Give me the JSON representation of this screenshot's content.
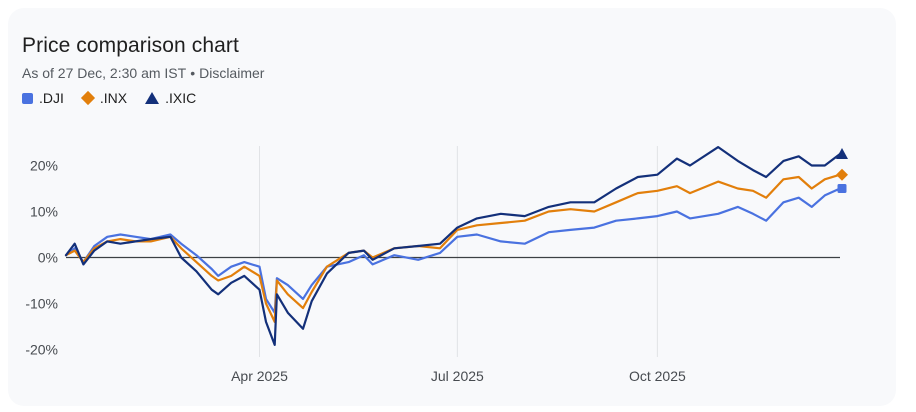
{
  "header": {
    "title": "Price comparison chart",
    "as_of": "As of 27 Dec, 2:30 am IST",
    "separator": "•",
    "disclaimer": "Disclaimer"
  },
  "legend": [
    {
      "label": ".DJI",
      "color": "#4a72e0",
      "shape": "square"
    },
    {
      "label": ".INX",
      "color": "#e27f0b",
      "shape": "diamond"
    },
    {
      "label": ".IXIC",
      "color": "#13307a",
      "shape": "triangle"
    }
  ],
  "chart_data": {
    "type": "line",
    "title": "Price comparison chart",
    "xlabel": "",
    "ylabel": "",
    "x": [
      "2025-01-02",
      "2025-01-06",
      "2025-01-10",
      "2025-01-15",
      "2025-01-21",
      "2025-01-27",
      "2025-02-03",
      "2025-02-10",
      "2025-02-19",
      "2025-02-24",
      "2025-03-03",
      "2025-03-10",
      "2025-03-13",
      "2025-03-19",
      "2025-03-25",
      "2025-04-01",
      "2025-04-04",
      "2025-04-08",
      "2025-04-09",
      "2025-04-14",
      "2025-04-21",
      "2025-04-25",
      "2025-05-02",
      "2025-05-12",
      "2025-05-19",
      "2025-05-23",
      "2025-06-02",
      "2025-06-13",
      "2025-06-23",
      "2025-07-01",
      "2025-07-10",
      "2025-07-21",
      "2025-08-01",
      "2025-08-12",
      "2025-08-22",
      "2025-09-02",
      "2025-09-12",
      "2025-09-22",
      "2025-10-01",
      "2025-10-10",
      "2025-10-16",
      "2025-10-29",
      "2025-11-07",
      "2025-11-14",
      "2025-11-20",
      "2025-11-28",
      "2025-12-05",
      "2025-12-11",
      "2025-12-17",
      "2025-12-24"
    ],
    "x_ticks": [
      "Apr 2025",
      "Jul 2025",
      "Oct 2025"
    ],
    "x_tick_dates": [
      "2025-04-01",
      "2025-07-01",
      "2025-10-01"
    ],
    "y_ticks": [
      "20%",
      "10%",
      "0%",
      "-10%",
      "-20%"
    ],
    "y_tick_values": [
      20,
      10,
      0,
      -10,
      -20
    ],
    "ylim": [
      -20,
      25
    ],
    "grid": "vertical",
    "legend_position": "top-left",
    "baseline": 0,
    "series": [
      {
        "name": ".DJI",
        "color": "#4a72e0",
        "marker": "square",
        "values": [
          0.5,
          2.0,
          -1.0,
          2.5,
          4.5,
          5.0,
          4.5,
          4.0,
          5.0,
          3.0,
          0.5,
          -2.5,
          -4.0,
          -2.0,
          -1.0,
          -2.0,
          -9.0,
          -12.0,
          -4.5,
          -6.0,
          -9.0,
          -6.0,
          -2.0,
          -1.0,
          0.5,
          -1.5,
          0.5,
          -0.5,
          1.0,
          4.5,
          5.0,
          3.5,
          3.0,
          5.5,
          6.0,
          6.5,
          8.0,
          8.5,
          9.0,
          10.0,
          8.5,
          9.5,
          11.0,
          9.5,
          8.0,
          12.0,
          13.0,
          11.0,
          13.5,
          15.0
        ]
      },
      {
        "name": ".INX",
        "color": "#e27f0b",
        "marker": "diamond",
        "values": [
          0.5,
          1.5,
          -1.0,
          2.0,
          3.5,
          4.0,
          3.5,
          3.5,
          4.5,
          2.0,
          -1.0,
          -4.0,
          -5.0,
          -4.0,
          -2.0,
          -4.0,
          -10.0,
          -14.0,
          -5.0,
          -8.0,
          -11.0,
          -7.5,
          -2.0,
          1.0,
          1.5,
          0.0,
          2.0,
          2.5,
          2.0,
          6.0,
          7.0,
          7.5,
          8.0,
          10.0,
          10.5,
          10.0,
          12.0,
          14.0,
          14.5,
          15.5,
          14.0,
          16.5,
          15.0,
          14.5,
          13.0,
          17.0,
          17.5,
          15.0,
          17.0,
          18.0
        ]
      },
      {
        "name": ".IXIC",
        "color": "#13307a",
        "marker": "triangle",
        "values": [
          0.5,
          3.0,
          -1.5,
          1.5,
          3.5,
          3.0,
          3.5,
          4.0,
          4.5,
          0.0,
          -3.0,
          -7.0,
          -8.0,
          -5.5,
          -4.0,
          -7.0,
          -14.0,
          -19.0,
          -8.0,
          -12.0,
          -15.5,
          -9.5,
          -3.5,
          1.0,
          1.5,
          -0.5,
          2.0,
          2.5,
          3.0,
          6.5,
          8.5,
          9.5,
          9.0,
          11.0,
          12.0,
          12.0,
          15.0,
          17.5,
          18.0,
          21.5,
          20.0,
          24.0,
          21.0,
          19.0,
          17.5,
          21.0,
          22.0,
          20.0,
          20.0,
          22.5
        ]
      }
    ]
  }
}
